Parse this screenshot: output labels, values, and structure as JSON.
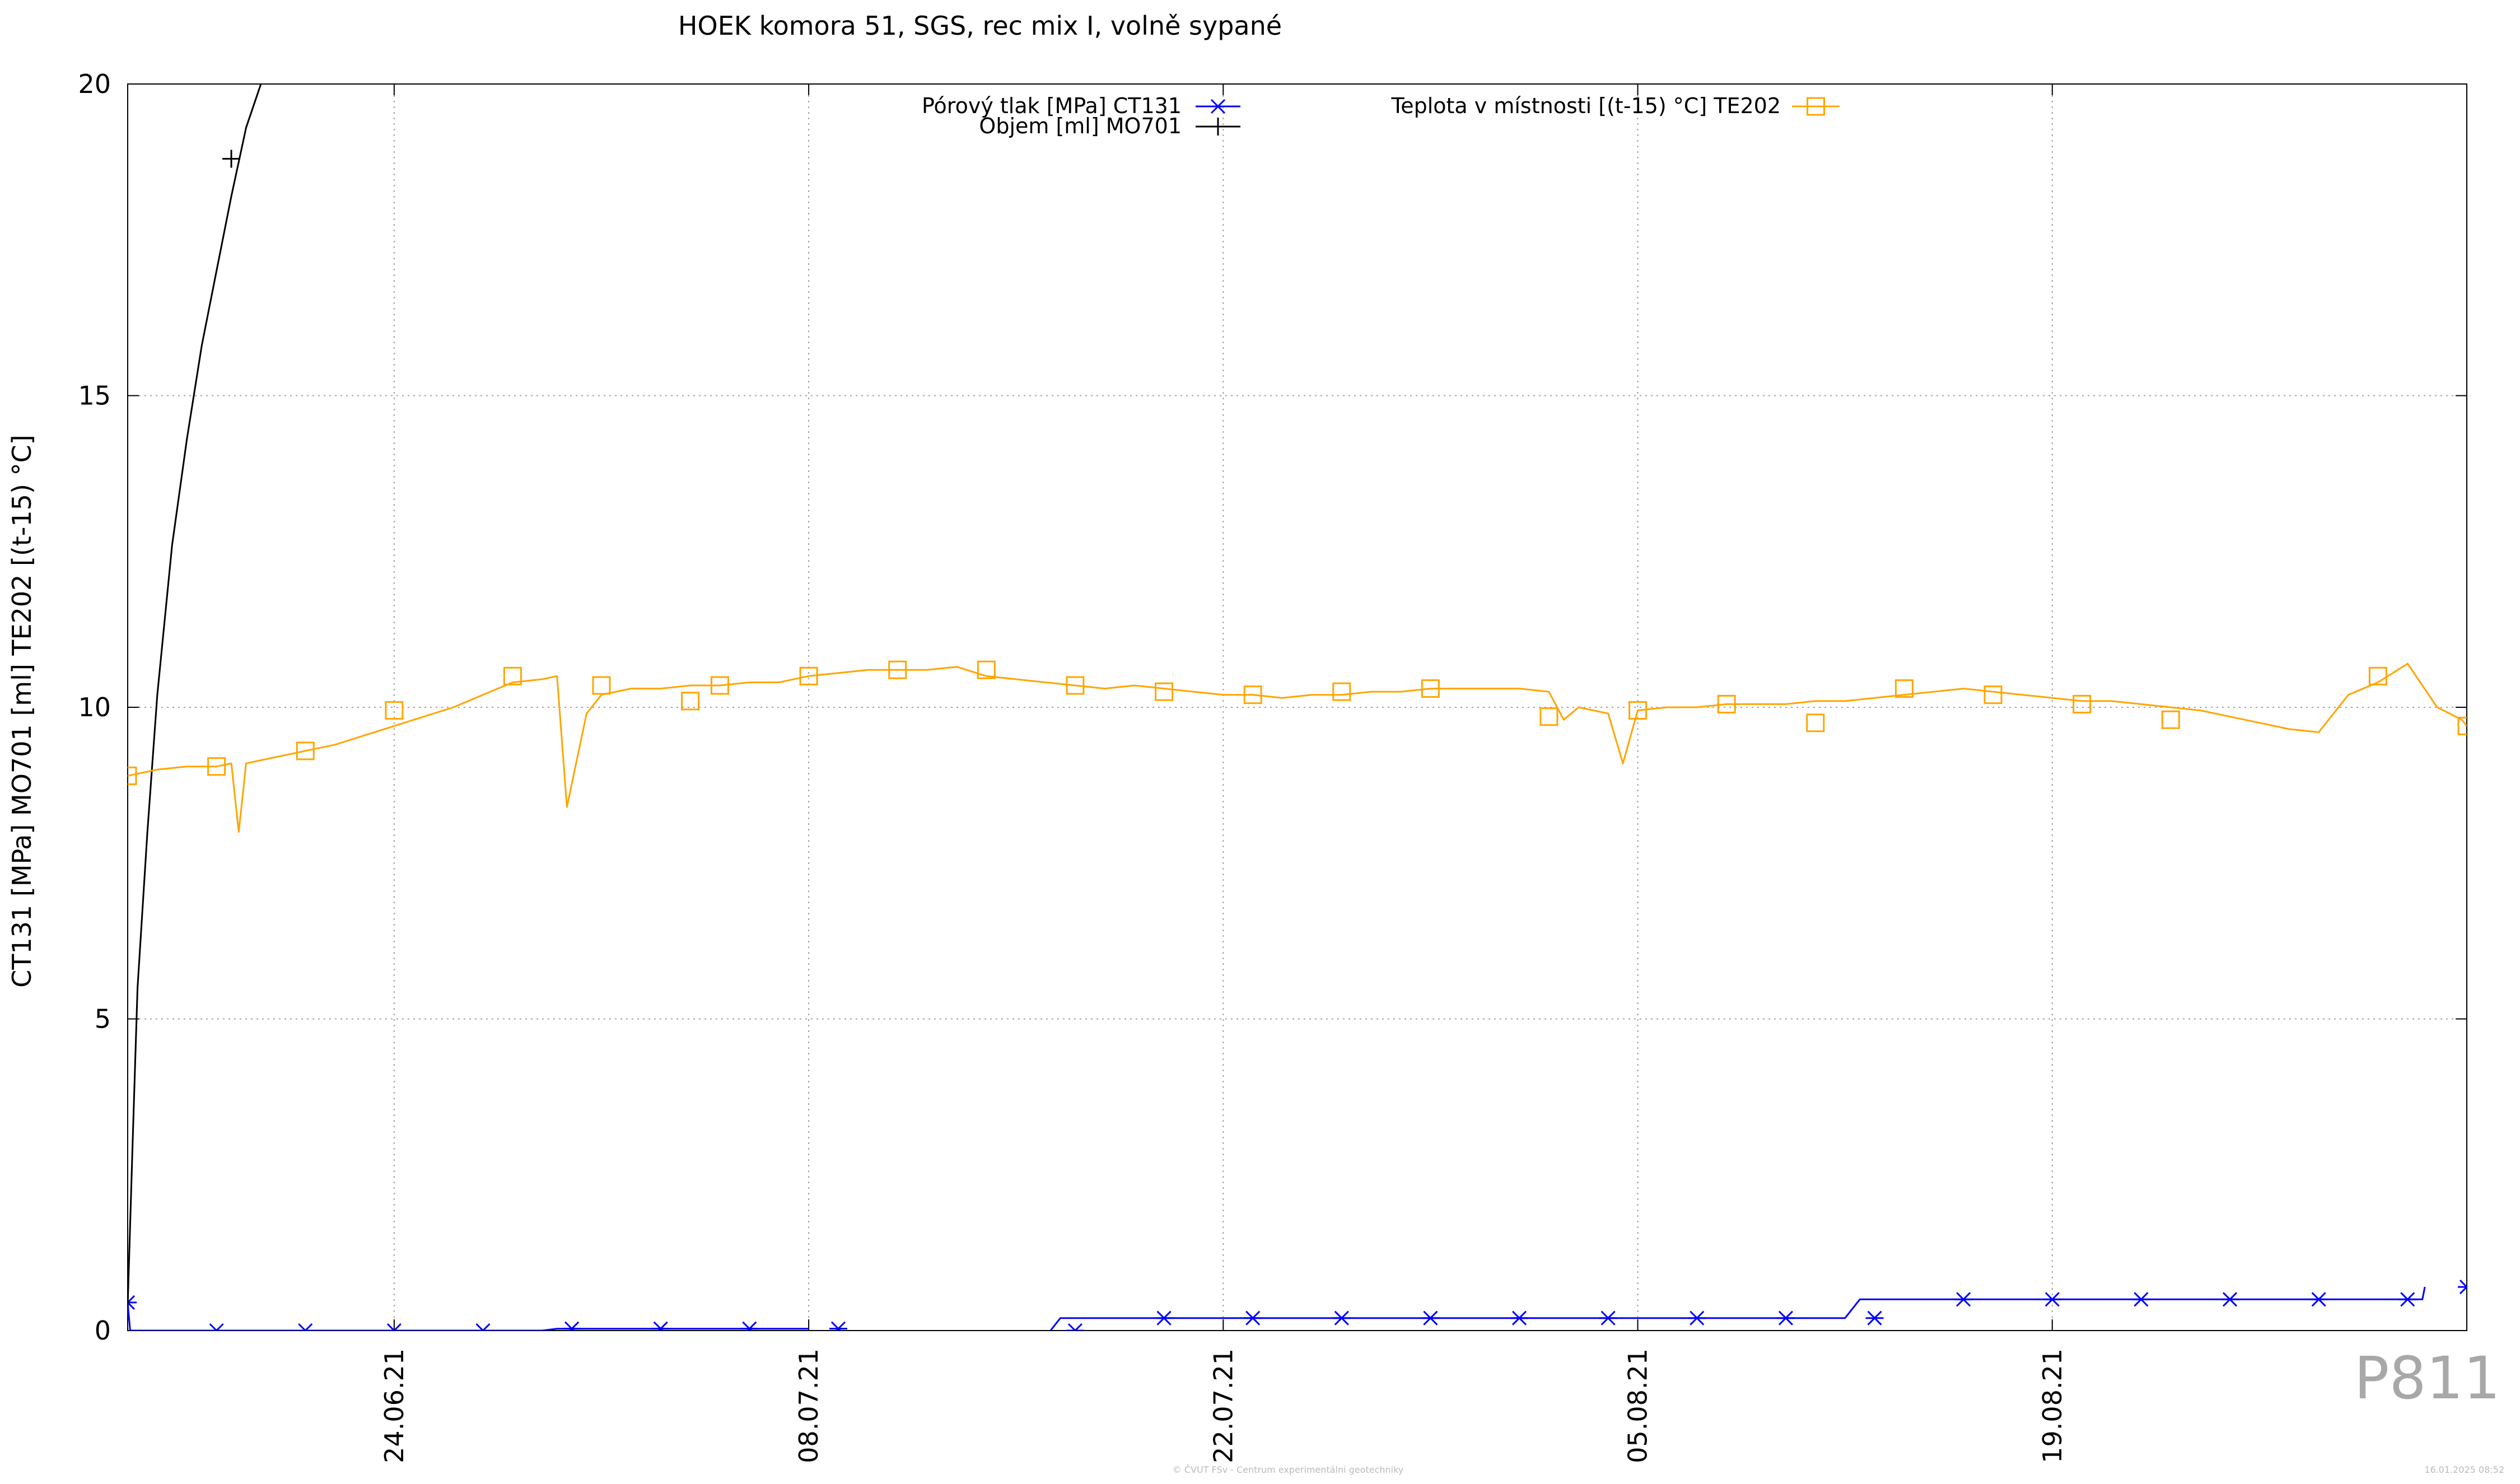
{
  "chart_data": {
    "type": "line",
    "title": "HOEK komora 51, SGS, rec mix I, volně sypané",
    "ylabel": "CT131 [MPa] MO701 [ml] TE202 [(t-15) °C]",
    "xlabel": "",
    "ylim": [
      0,
      20
    ],
    "xlim": [
      "2021-06-15",
      "2021-09-02"
    ],
    "yticks": [
      "0",
      "5",
      "10",
      "15",
      "20"
    ],
    "xticks": [
      {
        "date": "2021-06-24",
        "label": "24.06.21"
      },
      {
        "date": "2021-07-08",
        "label": "08.07.21"
      },
      {
        "date": "2021-07-22",
        "label": "22.07.21"
      },
      {
        "date": "2021-08-05",
        "label": "05.08.21"
      },
      {
        "date": "2021-08-19",
        "label": "19.08.21"
      }
    ],
    "grid": true,
    "legend": "top-center",
    "series": [
      {
        "name": "Pórový tlak [MPa] CT131",
        "color": "#0000ff",
        "marker": "asterisk",
        "step_points": [
          [
            "2021-06-15",
            0.45
          ],
          [
            "2021-06-15 02:00",
            0.0
          ],
          [
            "2021-06-29",
            0.0
          ],
          [
            "2021-06-29 12:00",
            0.03
          ],
          [
            "2021-07-08",
            0.03
          ],
          [
            "2021-07-08 08:00",
            null
          ],
          [
            "2021-07-16",
            null
          ],
          [
            "2021-07-16 04:00",
            0.0
          ],
          [
            "2021-07-16 12:00",
            0.2
          ],
          [
            "2021-08-12",
            0.2
          ],
          [
            "2021-08-12 12:00",
            0.5
          ],
          [
            "2021-08-31 12:00",
            0.5
          ],
          [
            "2021-08-31 14:00",
            0.7
          ]
        ],
        "markers": [
          [
            "2021-06-15",
            0.45
          ],
          [
            "2021-06-18",
            0.0
          ],
          [
            "2021-06-21",
            0.0
          ],
          [
            "2021-06-24",
            0.0
          ],
          [
            "2021-06-27",
            0.0
          ],
          [
            "2021-06-30",
            0.03
          ],
          [
            "2021-07-03",
            0.03
          ],
          [
            "2021-07-06",
            0.03
          ],
          [
            "2021-07-09",
            0.03
          ],
          [
            "2021-07-17",
            0.0
          ],
          [
            "2021-07-20",
            0.2
          ],
          [
            "2021-07-23",
            0.2
          ],
          [
            "2021-07-26",
            0.2
          ],
          [
            "2021-07-29",
            0.2
          ],
          [
            "2021-08-01",
            0.2
          ],
          [
            "2021-08-04",
            0.2
          ],
          [
            "2021-08-07",
            0.2
          ],
          [
            "2021-08-10",
            0.2
          ],
          [
            "2021-08-13",
            0.2
          ],
          [
            "2021-08-16",
            0.5
          ],
          [
            "2021-08-19",
            0.5
          ],
          [
            "2021-08-22",
            0.5
          ],
          [
            "2021-08-25",
            0.5
          ],
          [
            "2021-08-28",
            0.5
          ],
          [
            "2021-08-31",
            0.5
          ],
          [
            "2021-09-02",
            0.7
          ]
        ]
      },
      {
        "name": "Objem [ml] MO701",
        "color": "#000000",
        "marker": "plus",
        "points": [
          [
            "2021-06-15 00:00",
            0.4
          ],
          [
            "2021-06-15 04:00",
            3.0
          ],
          [
            "2021-06-15 08:00",
            5.5
          ],
          [
            "2021-06-15 16:00",
            8.0
          ],
          [
            "2021-06-16 00:00",
            10.2
          ],
          [
            "2021-06-16 12:00",
            12.6
          ],
          [
            "2021-06-17 00:00",
            14.3
          ],
          [
            "2021-06-17 12:00",
            15.8
          ],
          [
            "2021-06-18 00:00",
            17.0
          ],
          [
            "2021-06-18 12:00",
            18.2
          ],
          [
            "2021-06-19 00:00",
            19.3
          ],
          [
            "2021-06-19 12:00",
            20.0
          ]
        ],
        "markers": [
          [
            "2021-06-18 12:00",
            18.8
          ]
        ]
      },
      {
        "name": "Teplota v místnosti [(t-15) °C] TE202",
        "color": "#ffa500",
        "marker": "square",
        "points": [
          [
            "2021-06-15",
            8.9
          ],
          [
            "2021-06-16",
            9.0
          ],
          [
            "2021-06-17",
            9.05
          ],
          [
            "2021-06-18",
            9.05
          ],
          [
            "2021-06-18 12:00",
            9.1
          ],
          [
            "2021-06-18 18:00",
            8.0
          ],
          [
            "2021-06-19",
            9.1
          ],
          [
            "2021-06-20",
            9.2
          ],
          [
            "2021-06-21",
            9.3
          ],
          [
            "2021-06-22",
            9.4
          ],
          [
            "2021-06-23",
            9.55
          ],
          [
            "2021-06-24",
            9.7
          ],
          [
            "2021-06-25",
            9.85
          ],
          [
            "2021-06-26",
            10.0
          ],
          [
            "2021-06-27",
            10.2
          ],
          [
            "2021-06-28",
            10.4
          ],
          [
            "2021-06-29",
            10.45
          ],
          [
            "2021-06-29 12:00",
            10.5
          ],
          [
            "2021-06-29 20:00",
            8.4
          ],
          [
            "2021-06-30 12:00",
            9.9
          ],
          [
            "2021-07-01",
            10.2
          ],
          [
            "2021-07-02",
            10.3
          ],
          [
            "2021-07-03",
            10.3
          ],
          [
            "2021-07-04",
            10.35
          ],
          [
            "2021-07-05",
            10.35
          ],
          [
            "2021-07-06",
            10.4
          ],
          [
            "2021-07-07",
            10.4
          ],
          [
            "2021-07-08",
            10.5
          ],
          [
            "2021-07-09",
            10.55
          ],
          [
            "2021-07-10",
            10.6
          ],
          [
            "2021-07-11",
            10.6
          ],
          [
            "2021-07-12",
            10.6
          ],
          [
            "2021-07-13",
            10.65
          ],
          [
            "2021-07-14",
            10.5
          ],
          [
            "2021-07-15",
            10.45
          ],
          [
            "2021-07-16",
            10.4
          ],
          [
            "2021-07-17",
            10.35
          ],
          [
            "2021-07-18",
            10.3
          ],
          [
            "2021-07-19",
            10.35
          ],
          [
            "2021-07-20",
            10.3
          ],
          [
            "2021-07-21",
            10.25
          ],
          [
            "2021-07-22",
            10.2
          ],
          [
            "2021-07-23",
            10.2
          ],
          [
            "2021-07-24",
            10.15
          ],
          [
            "2021-07-25",
            10.2
          ],
          [
            "2021-07-26",
            10.2
          ],
          [
            "2021-07-27",
            10.25
          ],
          [
            "2021-07-28",
            10.25
          ],
          [
            "2021-07-29",
            10.3
          ],
          [
            "2021-07-30",
            10.3
          ],
          [
            "2021-07-31",
            10.3
          ],
          [
            "2021-08-01",
            10.3
          ],
          [
            "2021-08-02",
            10.25
          ],
          [
            "2021-08-02 12:00",
            9.8
          ],
          [
            "2021-08-03",
            10.0
          ],
          [
            "2021-08-04",
            9.9
          ],
          [
            "2021-08-04 12:00",
            9.1
          ],
          [
            "2021-08-05",
            9.95
          ],
          [
            "2021-08-06",
            10.0
          ],
          [
            "2021-08-07",
            10.0
          ],
          [
            "2021-08-08",
            10.05
          ],
          [
            "2021-08-09",
            10.05
          ],
          [
            "2021-08-10",
            10.05
          ],
          [
            "2021-08-11",
            10.1
          ],
          [
            "2021-08-12",
            10.1
          ],
          [
            "2021-08-13",
            10.15
          ],
          [
            "2021-08-14",
            10.2
          ],
          [
            "2021-08-15",
            10.25
          ],
          [
            "2021-08-16",
            10.3
          ],
          [
            "2021-08-17",
            10.25
          ],
          [
            "2021-08-18",
            10.2
          ],
          [
            "2021-08-19",
            10.15
          ],
          [
            "2021-08-20",
            10.1
          ],
          [
            "2021-08-21",
            10.1
          ],
          [
            "2021-08-22",
            10.05
          ],
          [
            "2021-08-23",
            10.0
          ],
          [
            "2021-08-24",
            9.95
          ],
          [
            "2021-08-25",
            9.85
          ],
          [
            "2021-08-26",
            9.75
          ],
          [
            "2021-08-27",
            9.65
          ],
          [
            "2021-08-28",
            9.6
          ],
          [
            "2021-08-29",
            10.2
          ],
          [
            "2021-08-30",
            10.4
          ],
          [
            "2021-08-31",
            10.7
          ],
          [
            "2021-09-01",
            10.0
          ],
          [
            "2021-09-01 20:00",
            9.8
          ],
          [
            "2021-09-02",
            9.7
          ]
        ],
        "markers": [
          [
            "2021-06-15",
            8.9
          ],
          [
            "2021-06-18",
            9.05
          ],
          [
            "2021-06-21",
            9.3
          ],
          [
            "2021-06-24",
            9.95
          ],
          [
            "2021-06-28",
            10.5
          ],
          [
            "2021-07-01",
            10.35
          ],
          [
            "2021-07-04",
            10.1
          ],
          [
            "2021-07-05",
            10.35
          ],
          [
            "2021-07-08",
            10.5
          ],
          [
            "2021-07-11",
            10.6
          ],
          [
            "2021-07-14",
            10.6
          ],
          [
            "2021-07-17",
            10.35
          ],
          [
            "2021-07-20",
            10.25
          ],
          [
            "2021-07-23",
            10.2
          ],
          [
            "2021-07-26",
            10.25
          ],
          [
            "2021-07-29",
            10.3
          ],
          [
            "2021-08-02",
            9.85
          ],
          [
            "2021-08-05",
            9.95
          ],
          [
            "2021-08-08",
            10.05
          ],
          [
            "2021-08-11",
            9.75
          ],
          [
            "2021-08-14",
            10.3
          ],
          [
            "2021-08-17",
            10.2
          ],
          [
            "2021-08-20",
            10.05
          ],
          [
            "2021-08-23",
            9.8
          ],
          [
            "2021-08-30",
            10.5
          ],
          [
            "2021-09-02",
            9.7
          ]
        ]
      }
    ]
  },
  "footer": {
    "credit": "© ČVUT FSv - Centrum experimentální geotechniky",
    "timestamp": "16.01.2025 08:52",
    "plot_id": "P811"
  }
}
